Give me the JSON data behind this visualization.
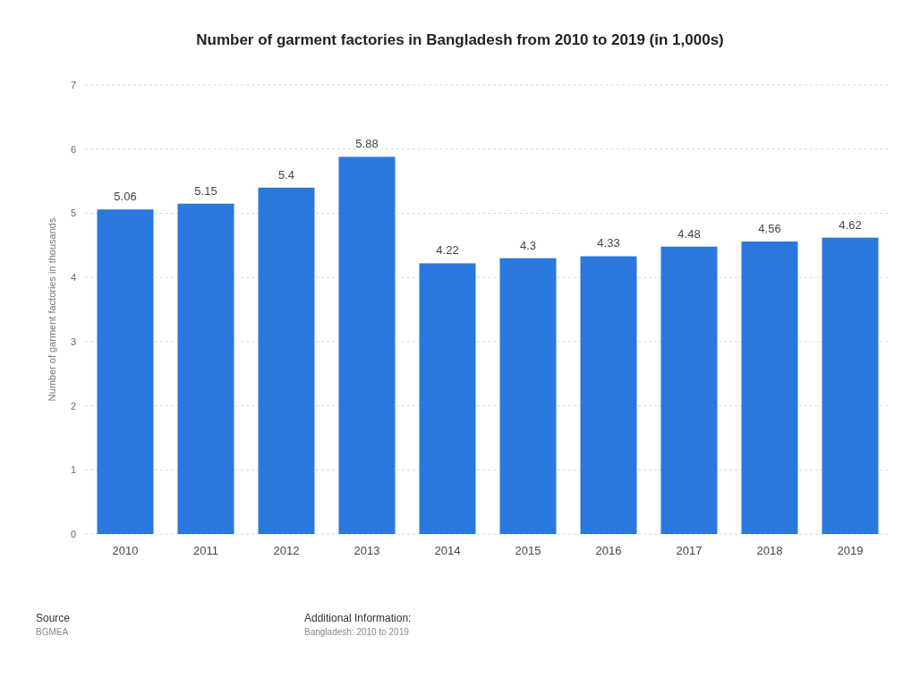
{
  "chart_data": {
    "type": "bar",
    "title": "Number of garment factories in Bangladesh from 2010 to 2019 (in 1,000s)",
    "ylabel": "Number of garment factories in thousands",
    "categories": [
      "2010",
      "2011",
      "2012",
      "2013",
      "2014",
      "2015",
      "2016",
      "2017",
      "2018",
      "2019"
    ],
    "values": [
      5.06,
      5.15,
      5.4,
      5.88,
      4.22,
      4.3,
      4.33,
      4.48,
      4.56,
      4.62
    ],
    "color": "#2a78de",
    "ylim": [
      0,
      7
    ],
    "yticks": [
      0,
      1,
      2,
      3,
      4,
      5,
      6,
      7
    ],
    "grid": "y",
    "data_labels": true,
    "annotations": [
      "Source",
      "BGMEA",
      "Additional Information:",
      "Bangladesh: 2010 to 2019"
    ]
  }
}
